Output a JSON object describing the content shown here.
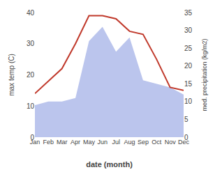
{
  "chart_data": {
    "type": "line",
    "categories": [
      "Jan",
      "Feb",
      "Mar",
      "Apr",
      "May",
      "Jun",
      "Jul",
      "Aug",
      "Sep",
      "Oct",
      "Nov",
      "Dec"
    ],
    "series": [
      {
        "type": "area",
        "color": "#bbc5ed",
        "axis": "y2",
        "values": [
          9,
          10,
          10,
          11,
          27,
          31,
          24,
          28,
          16,
          15,
          14,
          12
        ]
      },
      {
        "type": "line",
        "color": "#c0392b",
        "values": [
          14,
          18,
          22,
          30,
          39,
          39,
          38,
          34,
          33,
          25,
          16,
          15
        ]
      }
    ],
    "xlabel": "date (month)",
    "ylabel": "max temp (C)",
    "y2label": "med. precipitation (kg/m2)",
    "ylim": [
      0,
      40
    ],
    "yticks": [
      0,
      10,
      20,
      30,
      40
    ],
    "y2lim": [
      0,
      35
    ],
    "y2ticks": [
      0,
      5,
      10,
      15,
      20,
      25,
      30,
      35
    ],
    "grid": false
  }
}
